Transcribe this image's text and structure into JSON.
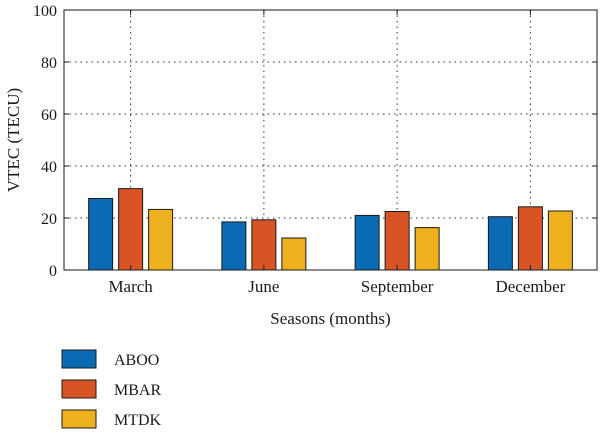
{
  "chart_data": {
    "type": "bar",
    "xlabel": "Seasons (months)",
    "ylabel": "VTEC (TECU)",
    "ylim": [
      0,
      100
    ],
    "yticks": [
      0,
      20,
      40,
      60,
      80,
      100
    ],
    "grid": true,
    "legend_position": "bottom-left",
    "categories": [
      "March",
      "June",
      "September",
      "December"
    ],
    "series": [
      {
        "name": "ABOO",
        "color": "#0a6ab3",
        "values": [
          27.5,
          18.5,
          21,
          20.5
        ]
      },
      {
        "name": "MBAR",
        "color": "#d95425",
        "values": [
          31.3,
          19.3,
          22.5,
          24.3
        ]
      },
      {
        "name": "MTDK",
        "color": "#eeb11e",
        "values": [
          23.3,
          12.3,
          16.3,
          22.7
        ]
      }
    ]
  }
}
